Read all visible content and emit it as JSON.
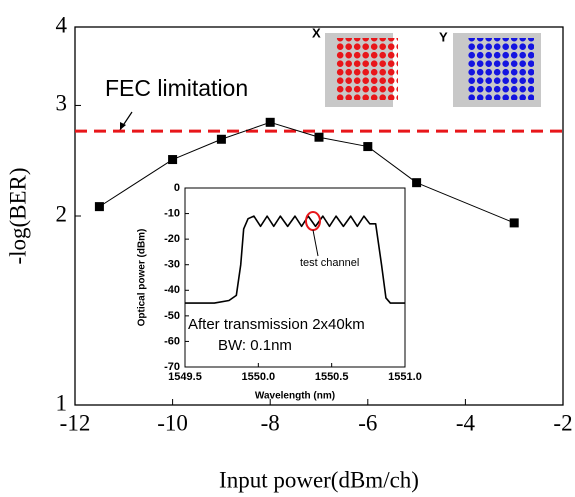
{
  "chart_data": [
    {
      "type": "line",
      "xlabel": "Input power(dBm/ch)",
      "ylabel": "-log(BER)",
      "yscale": "log",
      "x": [
        -11.5,
        -10,
        -9,
        -8,
        -7,
        -6,
        -5,
        -3
      ],
      "series": [
        {
          "color": "#000000",
          "values": [
            2.07,
            2.46,
            2.65,
            2.82,
            2.67,
            2.58,
            2.26,
            1.95
          ]
        }
      ],
      "xlim": [
        -12,
        -2
      ],
      "xticks": [
        -12,
        -10,
        -8,
        -6,
        -4,
        -2
      ],
      "ylim": [
        1,
        4
      ],
      "yticks": [
        1,
        2,
        3,
        4
      ],
      "reference_line": {
        "label": "FEC limitation",
        "value": 2.73,
        "color": "#e8161a"
      },
      "annotations": [
        "X",
        "Y"
      ]
    },
    {
      "type": "line",
      "xlabel": "Wavelength (nm)",
      "ylabel": "Optical power (dBm)",
      "x": [
        1549.5,
        1549.6,
        1549.7,
        1549.8,
        1549.85,
        1549.88,
        1549.9,
        1549.93,
        1549.97,
        1550.015,
        1550.06,
        1550.105,
        1550.15,
        1550.2,
        1550.25,
        1550.295,
        1550.34,
        1550.39,
        1550.44,
        1550.485,
        1550.53,
        1550.58,
        1550.63,
        1550.675,
        1550.72,
        1550.76,
        1550.8,
        1550.84,
        1550.87,
        1550.9,
        1551.0
      ],
      "series": [
        {
          "color": "#000000",
          "values": [
            -45,
            -45,
            -45,
            -44,
            -42,
            -30,
            -16,
            -12,
            -11,
            -15,
            -11,
            -15,
            -11,
            -15,
            -11,
            -15,
            -11,
            -15,
            -11,
            -15,
            -11,
            -15,
            -11,
            -15,
            -11,
            -14,
            -14,
            -30,
            -43,
            -45,
            -45
          ]
        }
      ],
      "xlim": [
        1549.5,
        1551.0
      ],
      "xticks": [
        1549.5,
        {
          "value": 1550,
          "label": "1550.0"
        },
        1550.5,
        {
          "value": 1551,
          "label": "1551.0"
        }
      ],
      "ylim": [
        -70,
        0
      ],
      "yticks": [
        0,
        -10,
        -20,
        -30,
        -40,
        -50,
        -60,
        -70
      ],
      "annotations": [
        "test channel",
        "After transmission 2x40km",
        "BW: 0.1nm"
      ]
    }
  ]
}
